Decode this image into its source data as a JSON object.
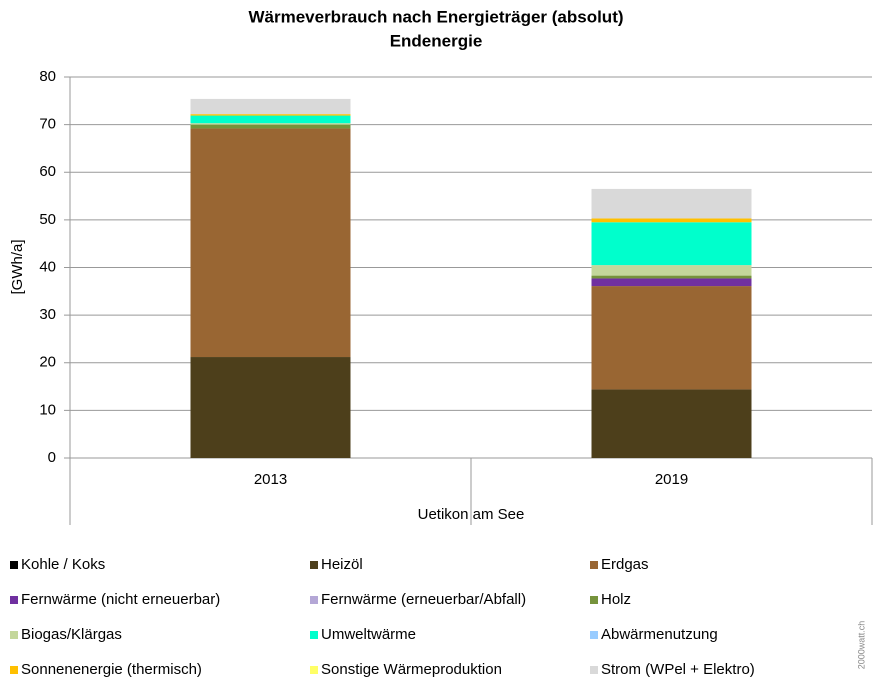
{
  "chart_data": {
    "type": "stacked_bar",
    "title": "Wärmeverbrauch nach Energieträger (absolut)",
    "subtitle": "Endenergie",
    "y_label": "[GWh/a]",
    "group_label": "Uetikon am See",
    "watermark": "2000watt.ch",
    "categories": [
      "2013",
      "2019"
    ],
    "ylim": [
      0,
      80
    ],
    "yticks": [
      0,
      10,
      20,
      30,
      40,
      50,
      60,
      70,
      80
    ],
    "grid": true,
    "series": [
      {
        "name": "Kohle / Koks",
        "color": "#000000",
        "values": [
          0,
          0
        ]
      },
      {
        "name": "Heizöl",
        "color": "#4d3f1b",
        "values": [
          21.2,
          14.4
        ]
      },
      {
        "name": "Erdgas",
        "color": "#996633",
        "values": [
          48.0,
          21.7
        ]
      },
      {
        "name": "Fernwärme (nicht erneuerbar)",
        "color": "#7030a0",
        "values": [
          0,
          1.6
        ]
      },
      {
        "name": "Fernwärme (erneuerbar/Abfall)",
        "color": "#b4a7d6",
        "values": [
          0,
          0
        ]
      },
      {
        "name": "Holz",
        "color": "#76933c",
        "values": [
          0.8,
          0.6
        ]
      },
      {
        "name": "Biogas/Klärgas",
        "color": "#c4d79b",
        "values": [
          0.3,
          2.2
        ]
      },
      {
        "name": "Umweltwärme",
        "color": "#00ffcc",
        "values": [
          1.6,
          9.0
        ]
      },
      {
        "name": "Abwärmenutzung",
        "color": "#99ccff",
        "values": [
          0,
          0
        ]
      },
      {
        "name": "Sonnenenergie (thermisch)",
        "color": "#ffc000",
        "values": [
          0.3,
          0.8
        ]
      },
      {
        "name": "Sonstige Wärmeproduktion",
        "color": "#ffff66",
        "values": [
          0,
          0
        ]
      },
      {
        "name": "Strom (WPel + Elektro)",
        "color": "#d9d9d9",
        "values": [
          3.2,
          6.2
        ]
      }
    ]
  }
}
